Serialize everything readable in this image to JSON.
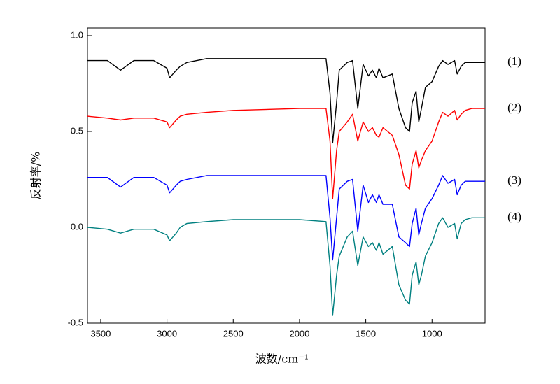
{
  "chart_data": {
    "type": "line",
    "xlabel": "波数/cm⁻¹",
    "ylabel": "反射率/%",
    "x": [
      3600,
      3450,
      3350,
      3250,
      3100,
      3000,
      2980,
      2930,
      2900,
      2850,
      2700,
      2500,
      2000,
      1800,
      1770,
      1750,
      1720,
      1700,
      1640,
      1600,
      1560,
      1520,
      1480,
      1450,
      1420,
      1400,
      1370,
      1300,
      1250,
      1200,
      1170,
      1150,
      1120,
      1100,
      1080,
      1050,
      1000,
      950,
      920,
      880,
      830,
      810,
      780,
      750,
      700,
      600
    ],
    "series": [
      {
        "name": "(1)",
        "color": "#000000",
        "values": [
          0.87,
          0.87,
          0.82,
          0.87,
          0.87,
          0.83,
          0.78,
          0.82,
          0.84,
          0.86,
          0.88,
          0.88,
          0.88,
          0.88,
          0.7,
          0.44,
          0.65,
          0.82,
          0.86,
          0.87,
          0.62,
          0.85,
          0.79,
          0.82,
          0.78,
          0.83,
          0.78,
          0.8,
          0.62,
          0.52,
          0.5,
          0.65,
          0.71,
          0.55,
          0.62,
          0.73,
          0.76,
          0.84,
          0.87,
          0.85,
          0.87,
          0.8,
          0.84,
          0.86,
          0.86,
          0.86
        ]
      },
      {
        "name": "(2)",
        "color": "#ff0000",
        "values": [
          0.58,
          0.57,
          0.56,
          0.57,
          0.57,
          0.55,
          0.52,
          0.56,
          0.58,
          0.59,
          0.6,
          0.61,
          0.62,
          0.62,
          0.45,
          0.15,
          0.4,
          0.5,
          0.55,
          0.59,
          0.45,
          0.55,
          0.5,
          0.52,
          0.48,
          0.47,
          0.52,
          0.48,
          0.38,
          0.22,
          0.2,
          0.33,
          0.4,
          0.31,
          0.35,
          0.4,
          0.45,
          0.55,
          0.6,
          0.58,
          0.61,
          0.56,
          0.59,
          0.61,
          0.62,
          0.62
        ]
      },
      {
        "name": "(3)",
        "color": "#0000ff",
        "values": [
          0.26,
          0.26,
          0.21,
          0.26,
          0.26,
          0.22,
          0.18,
          0.22,
          0.24,
          0.25,
          0.27,
          0.27,
          0.27,
          0.27,
          0.05,
          -0.17,
          0.05,
          0.2,
          0.24,
          0.25,
          -0.02,
          0.22,
          0.13,
          0.17,
          0.13,
          0.17,
          0.12,
          0.12,
          -0.05,
          -0.08,
          -0.1,
          0.02,
          0.1,
          -0.04,
          0.02,
          0.1,
          0.15,
          0.22,
          0.27,
          0.23,
          0.25,
          0.17,
          0.22,
          0.24,
          0.24,
          0.24
        ]
      },
      {
        "name": "(4)",
        "color": "#008080",
        "values": [
          0.0,
          -0.01,
          -0.03,
          -0.01,
          -0.01,
          -0.04,
          -0.07,
          -0.03,
          0.0,
          0.02,
          0.03,
          0.04,
          0.04,
          0.03,
          -0.2,
          -0.46,
          -0.25,
          -0.15,
          -0.05,
          -0.02,
          -0.2,
          -0.05,
          -0.1,
          -0.08,
          -0.12,
          -0.08,
          -0.14,
          -0.1,
          -0.3,
          -0.38,
          -0.4,
          -0.25,
          -0.18,
          -0.3,
          -0.25,
          -0.15,
          -0.08,
          0.02,
          0.05,
          0.0,
          0.02,
          -0.06,
          0.02,
          0.04,
          0.05,
          0.05
        ]
      }
    ],
    "xlim": [
      3600,
      600
    ],
    "ylim": [
      -0.5,
      1.04
    ],
    "xticks": [
      3500,
      3000,
      2500,
      2000,
      1500,
      1000
    ],
    "yticks": [
      {
        "value": 1,
        "label": "1.0"
      },
      {
        "value": 0.5,
        "label": "0.5"
      },
      {
        "value": 0,
        "label": "0.0"
      },
      -0.5
    ]
  }
}
